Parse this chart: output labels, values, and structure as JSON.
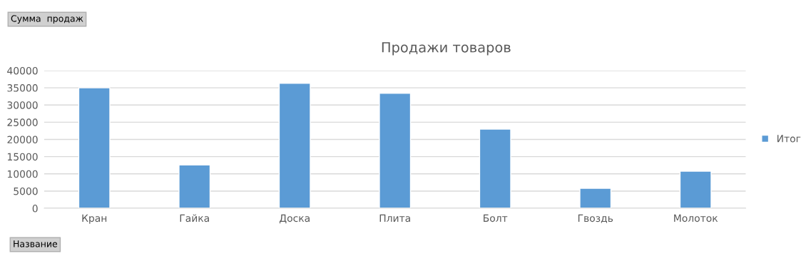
{
  "chart_data": {
    "type": "bar",
    "title": "Продажи товаров",
    "categories": [
      "Кран",
      "Гайка",
      "Доска",
      "Плита",
      "Болт",
      "Гвоздь",
      "Молоток"
    ],
    "series": [
      {
        "name": "Итог",
        "color": "#5b9bd5",
        "values": [
          35000,
          12600,
          36300,
          33400,
          23000,
          5800,
          10800
        ]
      }
    ],
    "ylim": [
      0,
      40000
    ],
    "yticks": [
      0,
      5000,
      10000,
      15000,
      20000,
      25000,
      30000,
      35000,
      40000
    ],
    "grid": "y",
    "legend": "right",
    "annotations": [
      "Сумма  продаж",
      "Название"
    ]
  }
}
